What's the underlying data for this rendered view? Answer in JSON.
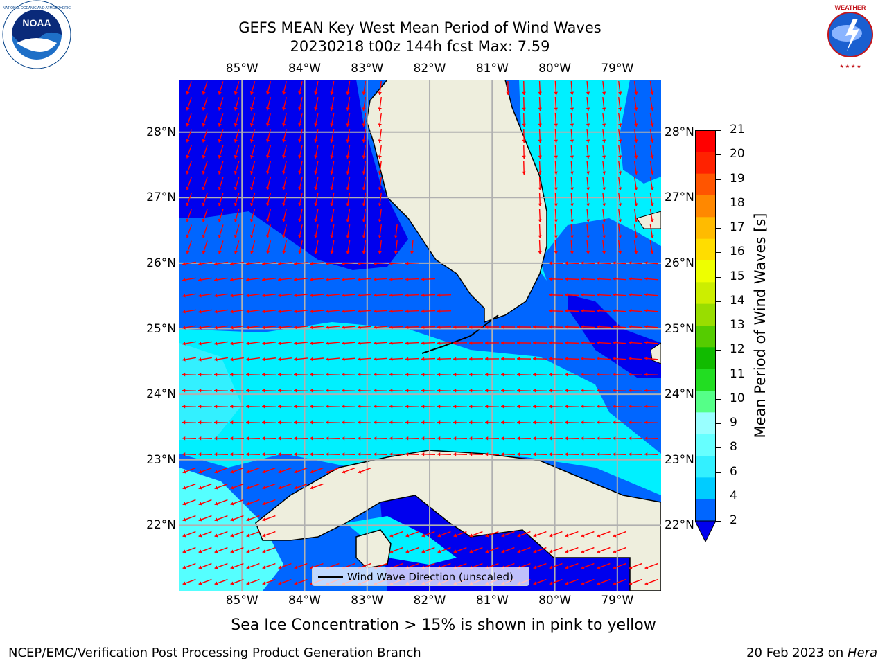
{
  "header": {
    "title_line1": "GEFS MEAN Key West Mean Period of Wind Waves",
    "title_line2": "20230218 t00z 144h fcst   Max: 7.59"
  },
  "logos": {
    "left": {
      "icon": "noaa-logo-icon",
      "text": "NOAA"
    },
    "right": {
      "icon": "nws-logo-icon",
      "text": "NATIONAL WEATHER SERVICE"
    }
  },
  "map": {
    "region": "Florida Straits / Key West",
    "lon_ticks": [
      "85°W",
      "84°W",
      "83°W",
      "82°W",
      "81°W",
      "80°W",
      "79°W"
    ],
    "lat_ticks": [
      "28°N",
      "27°N",
      "26°N",
      "25°N",
      "24°N",
      "23°N",
      "22°N"
    ],
    "lon_range": [
      -86.0,
      -78.3
    ],
    "lat_range": [
      21.0,
      28.8
    ],
    "land_color": "#eeeedd",
    "arrow_color": "#ff0000",
    "grid_color": "#b0b0b0"
  },
  "legend": {
    "label": "Wind Wave Direction (unscaled)"
  },
  "colorbar": {
    "label": "Mean Period of Wind Waves [s]",
    "ticks": [
      "2",
      "4",
      "6",
      "8",
      "9",
      "10",
      "11",
      "12",
      "13",
      "14",
      "15",
      "16",
      "17",
      "18",
      "19",
      "20",
      "21"
    ],
    "colors": [
      "#0066ff",
      "#00ccff",
      "#33f0ff",
      "#66ffff",
      "#99ffff",
      "#55ff88",
      "#22dd22",
      "#11bb00",
      "#55cc00",
      "#99dd00",
      "#ccee00",
      "#eeff00",
      "#ffdd00",
      "#ffbb00",
      "#ff8800",
      "#ff5500",
      "#ff2200",
      "#ff0000"
    ],
    "extend_color": "#0000ee"
  },
  "footer": {
    "ice_note": "Sea Ice Concentration > 15% is shown in pink to yellow",
    "left": "NCEP/EMC/Verification Post Processing Product Generation Branch",
    "right_prefix": "20 Feb 2023 on ",
    "right_host": "Hera"
  }
}
